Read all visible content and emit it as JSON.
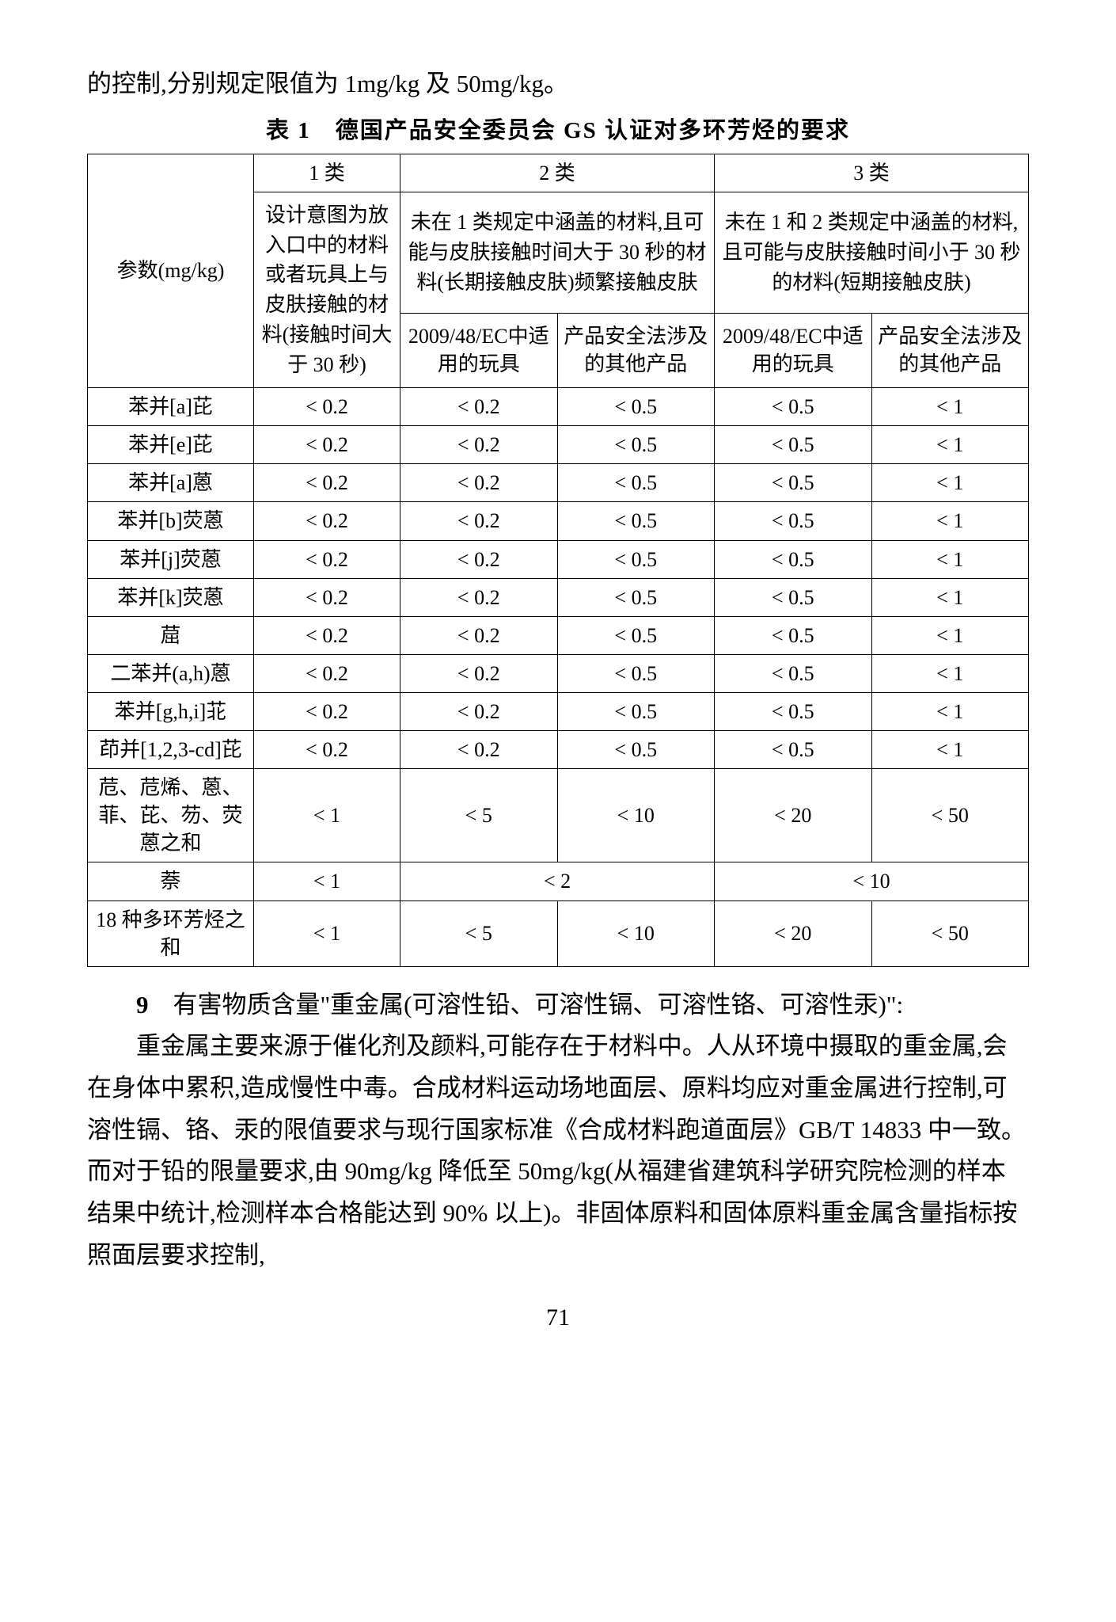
{
  "intro": "的控制,分别规定限值为 1mg/kg 及 50mg/kg。",
  "table": {
    "caption": "表 1　德国产品安全委员会 GS 认证对多环芳烃的要求",
    "header": {
      "param_label": "参数(mg/kg)",
      "cat1": "1 类",
      "cat2": "2 类",
      "cat3": "3 类",
      "cat1_desc": "设计意图为放入口中的材料或者玩具上与皮肤接触的材料(接触时间大于 30 秒)",
      "cat2_desc": "未在 1 类规定中涵盖的材料,且可能与皮肤接触时间大于 30 秒的材料(长期接触皮肤)频繁接触皮肤",
      "cat3_desc": "未在 1 和 2 类规定中涵盖的材料,且可能与皮肤接触时间小于 30 秒的材料(短期接触皮肤)",
      "sub_a": "2009/48/EC中适用的玩具",
      "sub_b": "产品安全法涉及的其他产品"
    },
    "rows": [
      {
        "name": "苯并[a]芘",
        "c1": "< 0.2",
        "c2a": "< 0.2",
        "c2b": "< 0.5",
        "c3a": "< 0.5",
        "c3b": "< 1"
      },
      {
        "name": "苯并[e]芘",
        "c1": "< 0.2",
        "c2a": "< 0.2",
        "c2b": "< 0.5",
        "c3a": "< 0.5",
        "c3b": "< 1"
      },
      {
        "name": "苯并[a]蒽",
        "c1": "< 0.2",
        "c2a": "< 0.2",
        "c2b": "< 0.5",
        "c3a": "< 0.5",
        "c3b": "< 1"
      },
      {
        "name": "苯并[b]荧蒽",
        "c1": "< 0.2",
        "c2a": "< 0.2",
        "c2b": "< 0.5",
        "c3a": "< 0.5",
        "c3b": "< 1"
      },
      {
        "name": "苯并[j]荧蒽",
        "c1": "< 0.2",
        "c2a": "< 0.2",
        "c2b": "< 0.5",
        "c3a": "< 0.5",
        "c3b": "< 1"
      },
      {
        "name": "苯并[k]荧蒽",
        "c1": "< 0.2",
        "c2a": "< 0.2",
        "c2b": "< 0.5",
        "c3a": "< 0.5",
        "c3b": "< 1"
      },
      {
        "name": "䓛",
        "c1": "< 0.2",
        "c2a": "< 0.2",
        "c2b": "< 0.5",
        "c3a": "< 0.5",
        "c3b": "< 1"
      },
      {
        "name": "二苯并(a,h)蒽",
        "c1": "< 0.2",
        "c2a": "< 0.2",
        "c2b": "< 0.5",
        "c3a": "< 0.5",
        "c3b": "< 1"
      },
      {
        "name": "苯并[g,h,i]苝",
        "c1": "< 0.2",
        "c2a": "< 0.2",
        "c2b": "< 0.5",
        "c3a": "< 0.5",
        "c3b": "< 1"
      },
      {
        "name": "茚并[1,2,3-cd]芘",
        "c1": "< 0.2",
        "c2a": "< 0.2",
        "c2b": "< 0.5",
        "c3a": "< 0.5",
        "c3b": "< 1"
      },
      {
        "name": "苊、苊烯、蒽、菲、芘、芴、荧蒽之和",
        "c1": "< 1",
        "c2a": "< 5",
        "c2b": "< 10",
        "c3a": "< 20",
        "c3b": "< 50"
      }
    ],
    "naphthalene": {
      "name": "萘",
      "c1": "< 1",
      "c23": "< 2",
      "c45": "< 10"
    },
    "sum18": {
      "name": "18 种多环芳烃之和",
      "c1": "< 1",
      "c2a": "< 5",
      "c2b": "< 10",
      "c3a": "< 20",
      "c3b": "< 50"
    }
  },
  "section9": {
    "num": "9",
    "title": "　有害物质含量\"重金属(可溶性铅、可溶性镉、可溶性铬、可溶性汞)\":",
    "para": "重金属主要来源于催化剂及颜料,可能存在于材料中。人从环境中摄取的重金属,会在身体中累积,造成慢性中毒。合成材料运动场地面层、原料均应对重金属进行控制,可溶性镉、铬、汞的限值要求与现行国家标准《合成材料跑道面层》GB/T 14833 中一致。而对于铅的限量要求,由 90mg/kg 降低至 50mg/kg(从福建省建筑科学研究院检测的样本结果中统计,检测样本合格能达到 90% 以上)。非固体原料和固体原料重金属含量指标按照面层要求控制,"
  },
  "page_number": "71"
}
